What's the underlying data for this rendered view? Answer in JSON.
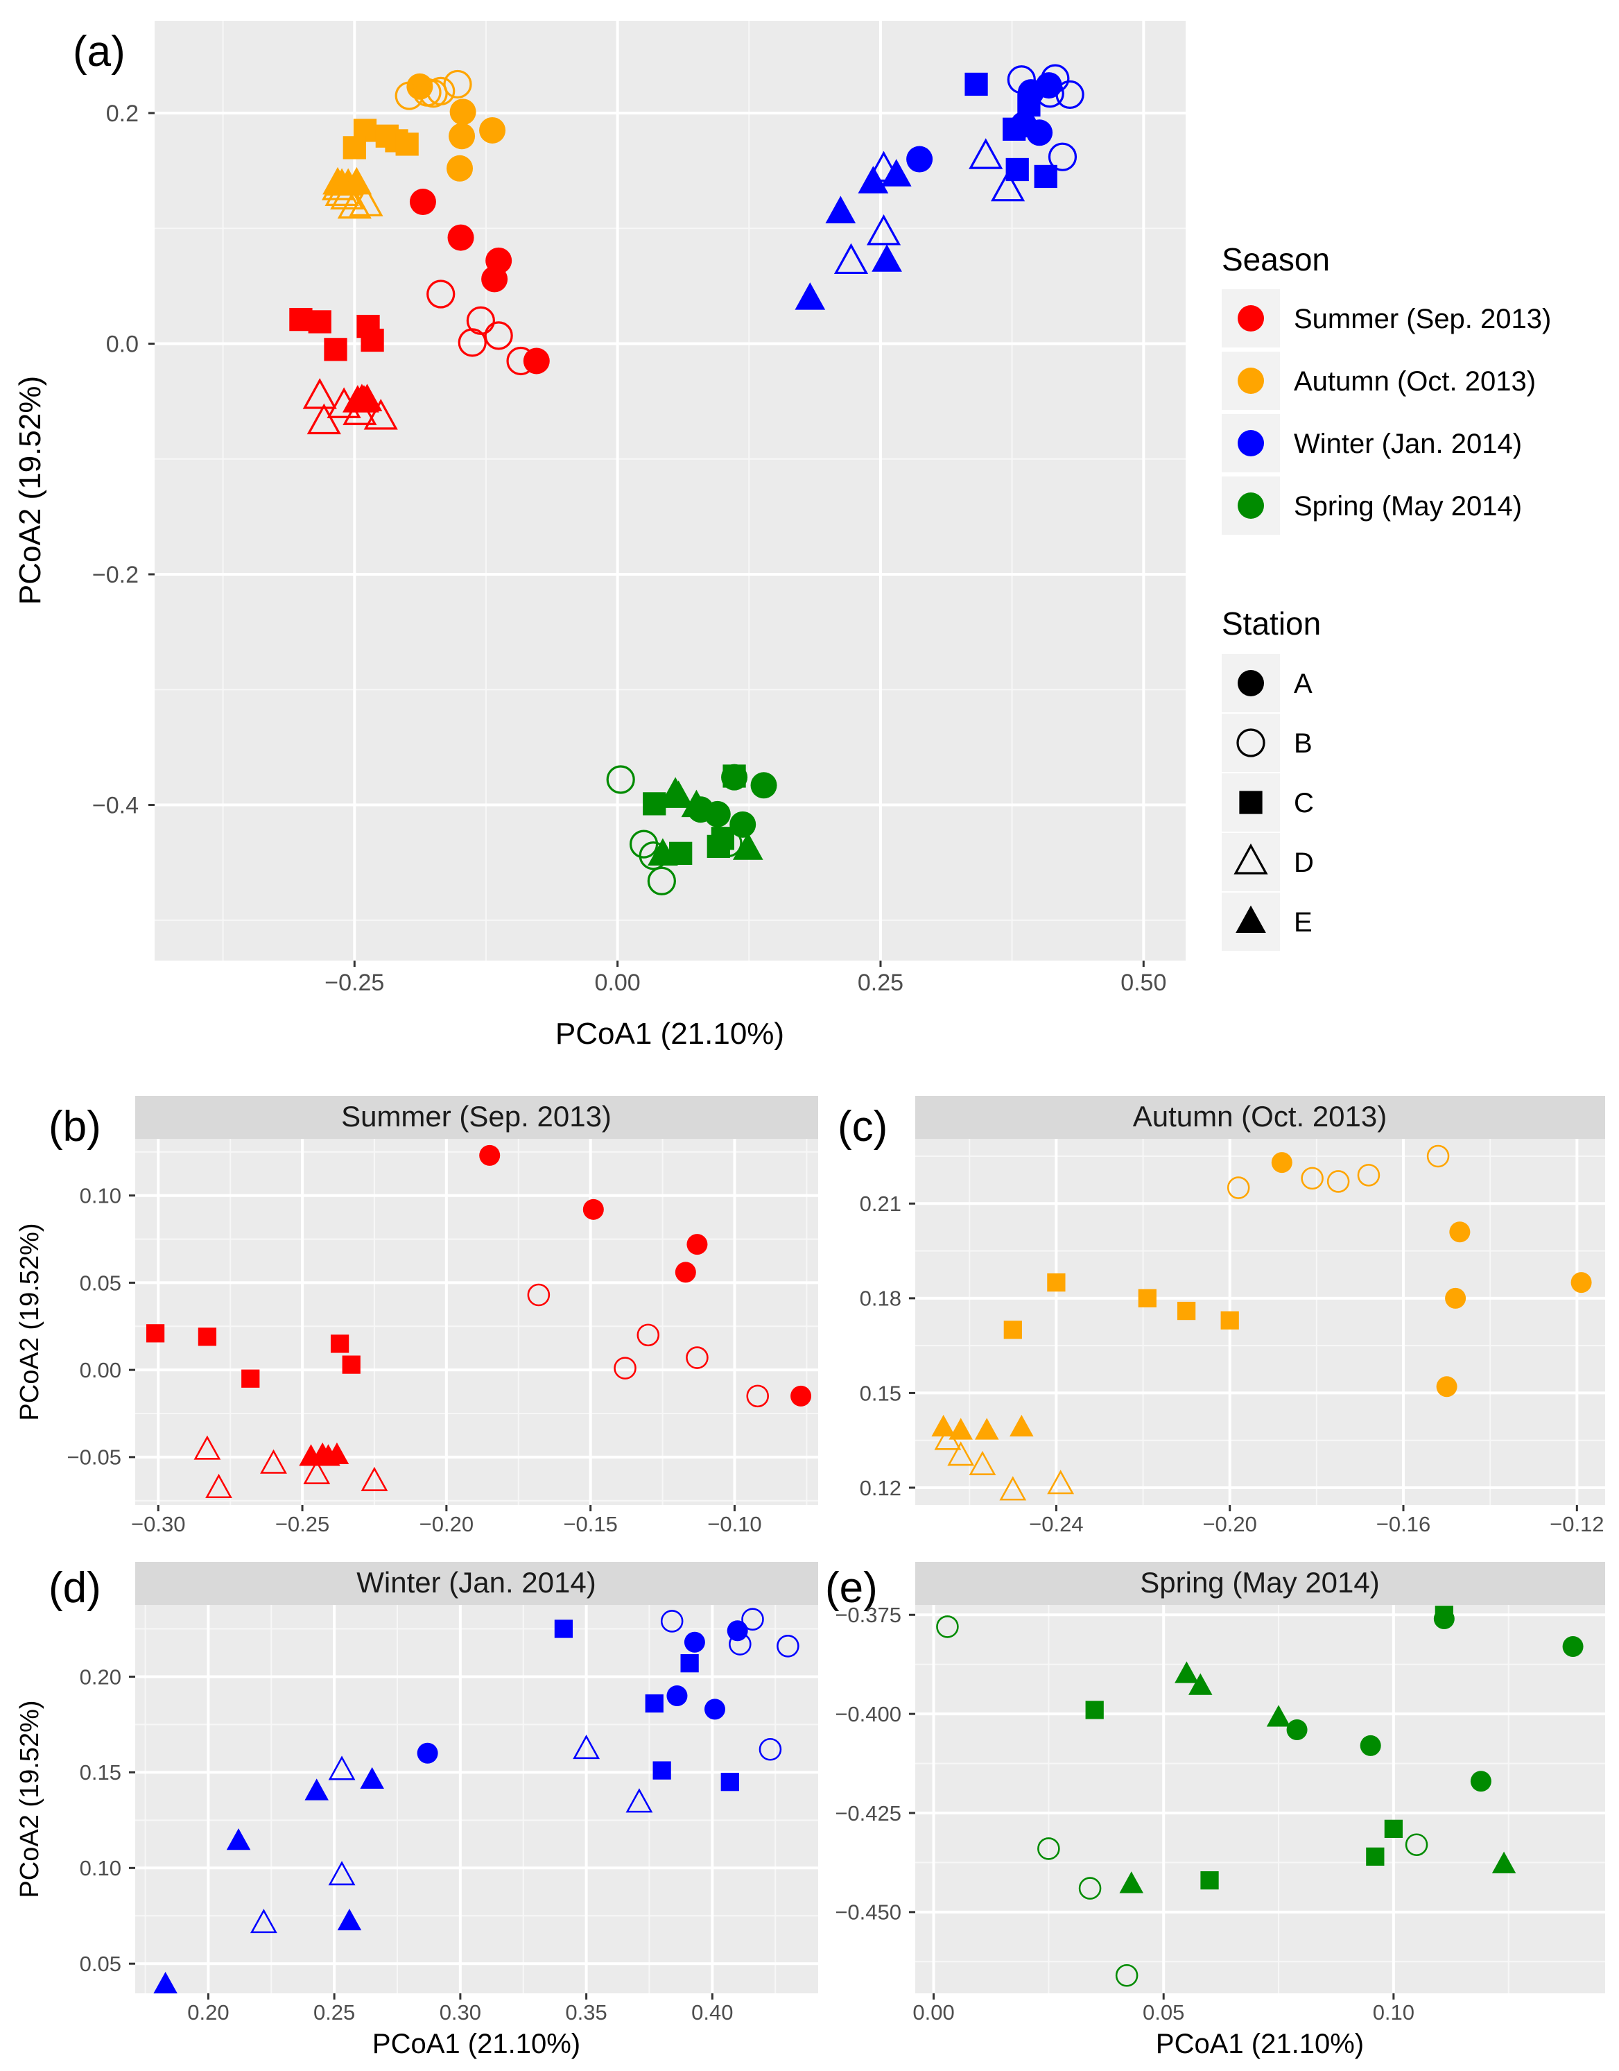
{
  "colors": {
    "Summer": "#ff0000",
    "Autumn": "#ffa500",
    "Winter": "#0000ff",
    "Spring": "#008b00"
  },
  "legend": {
    "season_title": "Season",
    "seasons": [
      {
        "key": "Summer",
        "label": "Summer (Sep. 2013)"
      },
      {
        "key": "Autumn",
        "label": "Autumn (Oct. 2013)"
      },
      {
        "key": "Winter",
        "label": "Winter (Jan. 2014)"
      },
      {
        "key": "Spring",
        "label": "Spring (May 2014)"
      }
    ],
    "station_title": "Station",
    "stations": [
      {
        "key": "A",
        "label": "A",
        "shape": "circle-filled"
      },
      {
        "key": "B",
        "label": "B",
        "shape": "circle-open"
      },
      {
        "key": "C",
        "label": "C",
        "shape": "square-filled"
      },
      {
        "key": "D",
        "label": "D",
        "shape": "triangle-open"
      },
      {
        "key": "E",
        "label": "E",
        "shape": "triangle-filled"
      }
    ]
  },
  "chart_data": [
    {
      "id": "a",
      "letter": "(a)",
      "type": "scatter",
      "title": "",
      "xlabel": "PCoA1 (21.10%)",
      "ylabel": "PCoA2 (19.52%)",
      "xlim": [
        -0.44,
        0.54
      ],
      "ylim": [
        -0.535,
        0.28
      ],
      "xticks": [
        -0.25,
        0.0,
        0.25,
        0.5
      ],
      "xticklabels": [
        "−0.25",
        "0.00",
        "0.25",
        "0.50"
      ],
      "yticks": [
        0.2,
        0.0,
        -0.2,
        -0.4
      ],
      "yticklabels": [
        "0.2",
        "0.0",
        "−0.2",
        "−0.4"
      ],
      "points": [
        {
          "season": "Summer",
          "station": "A",
          "x": -0.185,
          "y": 0.123
        },
        {
          "season": "Summer",
          "station": "A",
          "x": -0.149,
          "y": 0.092
        },
        {
          "season": "Summer",
          "station": "A",
          "x": -0.113,
          "y": 0.072
        },
        {
          "season": "Summer",
          "station": "A",
          "x": -0.117,
          "y": 0.056
        },
        {
          "season": "Summer",
          "station": "A",
          "x": -0.077,
          "y": -0.015
        },
        {
          "season": "Summer",
          "station": "B",
          "x": -0.168,
          "y": 0.043
        },
        {
          "season": "Summer",
          "station": "B",
          "x": -0.13,
          "y": 0.02
        },
        {
          "season": "Summer",
          "station": "B",
          "x": -0.113,
          "y": 0.007
        },
        {
          "season": "Summer",
          "station": "B",
          "x": -0.138,
          "y": 0.001
        },
        {
          "season": "Summer",
          "station": "B",
          "x": -0.092,
          "y": -0.015
        },
        {
          "season": "Summer",
          "station": "C",
          "x": -0.301,
          "y": 0.021
        },
        {
          "season": "Summer",
          "station": "C",
          "x": -0.283,
          "y": 0.019
        },
        {
          "season": "Summer",
          "station": "C",
          "x": -0.268,
          "y": -0.005
        },
        {
          "season": "Summer",
          "station": "C",
          "x": -0.237,
          "y": 0.015
        },
        {
          "season": "Summer",
          "station": "C",
          "x": -0.233,
          "y": 0.003
        },
        {
          "season": "Summer",
          "station": "D",
          "x": -0.283,
          "y": -0.046
        },
        {
          "season": "Summer",
          "station": "D",
          "x": -0.279,
          "y": -0.068
        },
        {
          "season": "Summer",
          "station": "D",
          "x": -0.26,
          "y": -0.054
        },
        {
          "season": "Summer",
          "station": "D",
          "x": -0.245,
          "y": -0.06
        },
        {
          "season": "Summer",
          "station": "D",
          "x": -0.225,
          "y": -0.064
        },
        {
          "season": "Summer",
          "station": "E",
          "x": -0.247,
          "y": -0.05
        },
        {
          "season": "Summer",
          "station": "E",
          "x": -0.243,
          "y": -0.049
        },
        {
          "season": "Summer",
          "station": "E",
          "x": -0.241,
          "y": -0.05
        },
        {
          "season": "Summer",
          "station": "E",
          "x": -0.238,
          "y": -0.049
        },
        {
          "season": "Autumn",
          "station": "A",
          "x": -0.188,
          "y": 0.223
        },
        {
          "season": "Autumn",
          "station": "A",
          "x": -0.147,
          "y": 0.201
        },
        {
          "season": "Autumn",
          "station": "A",
          "x": -0.148,
          "y": 0.18
        },
        {
          "season": "Autumn",
          "station": "A",
          "x": -0.119,
          "y": 0.185
        },
        {
          "season": "Autumn",
          "station": "A",
          "x": -0.15,
          "y": 0.152
        },
        {
          "season": "Autumn",
          "station": "B",
          "x": -0.198,
          "y": 0.215
        },
        {
          "season": "Autumn",
          "station": "B",
          "x": -0.181,
          "y": 0.218
        },
        {
          "season": "Autumn",
          "station": "B",
          "x": -0.175,
          "y": 0.217
        },
        {
          "season": "Autumn",
          "station": "B",
          "x": -0.168,
          "y": 0.219
        },
        {
          "season": "Autumn",
          "station": "B",
          "x": -0.152,
          "y": 0.225
        },
        {
          "season": "Autumn",
          "station": "C",
          "x": -0.24,
          "y": 0.185
        },
        {
          "season": "Autumn",
          "station": "C",
          "x": -0.219,
          "y": 0.18
        },
        {
          "season": "Autumn",
          "station": "C",
          "x": -0.21,
          "y": 0.176
        },
        {
          "season": "Autumn",
          "station": "C",
          "x": -0.2,
          "y": 0.173
        },
        {
          "season": "Autumn",
          "station": "C",
          "x": -0.25,
          "y": 0.17
        },
        {
          "season": "Autumn",
          "station": "D",
          "x": -0.265,
          "y": 0.135
        },
        {
          "season": "Autumn",
          "station": "D",
          "x": -0.262,
          "y": 0.13
        },
        {
          "season": "Autumn",
          "station": "D",
          "x": -0.257,
          "y": 0.127
        },
        {
          "season": "Autumn",
          "station": "D",
          "x": -0.25,
          "y": 0.119
        },
        {
          "season": "Autumn",
          "station": "D",
          "x": -0.239,
          "y": 0.121
        },
        {
          "season": "Autumn",
          "station": "E",
          "x": -0.266,
          "y": 0.139
        },
        {
          "season": "Autumn",
          "station": "E",
          "x": -0.262,
          "y": 0.138
        },
        {
          "season": "Autumn",
          "station": "E",
          "x": -0.256,
          "y": 0.138
        },
        {
          "season": "Autumn",
          "station": "E",
          "x": -0.248,
          "y": 0.139
        },
        {
          "season": "Winter",
          "station": "A",
          "x": 0.287,
          "y": 0.16
        },
        {
          "season": "Winter",
          "station": "A",
          "x": 0.386,
          "y": 0.19
        },
        {
          "season": "Winter",
          "station": "A",
          "x": 0.393,
          "y": 0.218
        },
        {
          "season": "Winter",
          "station": "A",
          "x": 0.401,
          "y": 0.183
        },
        {
          "season": "Winter",
          "station": "A",
          "x": 0.41,
          "y": 0.224
        },
        {
          "season": "Winter",
          "station": "B",
          "x": 0.384,
          "y": 0.229
        },
        {
          "season": "Winter",
          "station": "B",
          "x": 0.411,
          "y": 0.217
        },
        {
          "season": "Winter",
          "station": "B",
          "x": 0.416,
          "y": 0.23
        },
        {
          "season": "Winter",
          "station": "B",
          "x": 0.43,
          "y": 0.216
        },
        {
          "season": "Winter",
          "station": "B",
          "x": 0.423,
          "y": 0.162
        },
        {
          "season": "Winter",
          "station": "C",
          "x": 0.341,
          "y": 0.225
        },
        {
          "season": "Winter",
          "station": "C",
          "x": 0.377,
          "y": 0.186
        },
        {
          "season": "Winter",
          "station": "C",
          "x": 0.38,
          "y": 0.151
        },
        {
          "season": "Winter",
          "station": "C",
          "x": 0.391,
          "y": 0.207
        },
        {
          "season": "Winter",
          "station": "C",
          "x": 0.407,
          "y": 0.145
        },
        {
          "season": "Winter",
          "station": "D",
          "x": 0.222,
          "y": 0.071
        },
        {
          "season": "Winter",
          "station": "D",
          "x": 0.253,
          "y": 0.151
        },
        {
          "season": "Winter",
          "station": "D",
          "x": 0.253,
          "y": 0.096
        },
        {
          "season": "Winter",
          "station": "D",
          "x": 0.35,
          "y": 0.162
        },
        {
          "season": "Winter",
          "station": "D",
          "x": 0.371,
          "y": 0.134
        },
        {
          "season": "Winter",
          "station": "E",
          "x": 0.183,
          "y": 0.039
        },
        {
          "season": "Winter",
          "station": "E",
          "x": 0.212,
          "y": 0.114
        },
        {
          "season": "Winter",
          "station": "E",
          "x": 0.243,
          "y": 0.14
        },
        {
          "season": "Winter",
          "station": "E",
          "x": 0.256,
          "y": 0.072
        },
        {
          "season": "Winter",
          "station": "E",
          "x": 0.265,
          "y": 0.146
        },
        {
          "season": "Spring",
          "station": "A",
          "x": 0.079,
          "y": -0.404
        },
        {
          "season": "Spring",
          "station": "A",
          "x": 0.095,
          "y": -0.408
        },
        {
          "season": "Spring",
          "station": "A",
          "x": 0.111,
          "y": -0.376
        },
        {
          "season": "Spring",
          "station": "A",
          "x": 0.119,
          "y": -0.417
        },
        {
          "season": "Spring",
          "station": "A",
          "x": 0.139,
          "y": -0.383
        },
        {
          "season": "Spring",
          "station": "B",
          "x": 0.003,
          "y": -0.378
        },
        {
          "season": "Spring",
          "station": "B",
          "x": 0.025,
          "y": -0.434
        },
        {
          "season": "Spring",
          "station": "B",
          "x": 0.034,
          "y": -0.444
        },
        {
          "season": "Spring",
          "station": "B",
          "x": 0.042,
          "y": -0.466
        },
        {
          "season": "Spring",
          "station": "B",
          "x": 0.105,
          "y": -0.433
        },
        {
          "season": "Spring",
          "station": "C",
          "x": 0.035,
          "y": -0.399
        },
        {
          "season": "Spring",
          "station": "C",
          "x": 0.06,
          "y": -0.442
        },
        {
          "season": "Spring",
          "station": "C",
          "x": 0.096,
          "y": -0.436
        },
        {
          "season": "Spring",
          "station": "C",
          "x": 0.1,
          "y": -0.429
        },
        {
          "season": "Spring",
          "station": "C",
          "x": 0.111,
          "y": -0.375
        },
        {
          "season": "Spring",
          "station": "E",
          "x": 0.043,
          "y": -0.443
        },
        {
          "season": "Spring",
          "station": "E",
          "x": 0.055,
          "y": -0.39
        },
        {
          "season": "Spring",
          "station": "E",
          "x": 0.058,
          "y": -0.393
        },
        {
          "season": "Spring",
          "station": "E",
          "x": 0.075,
          "y": -0.401
        },
        {
          "season": "Spring",
          "station": "E",
          "x": 0.124,
          "y": -0.438
        }
      ]
    },
    {
      "id": "b",
      "letter": "(b)",
      "type": "scatter",
      "title": "Summer (Sep. 2013)",
      "season": "Summer",
      "xlabel": "",
      "ylabel": "PCoA2 (19.52%)",
      "xlim": [
        -0.308,
        -0.071
      ],
      "ylim": [
        -0.0775,
        0.1325
      ],
      "xticks": [
        -0.3,
        -0.25,
        -0.2,
        -0.15,
        -0.1
      ],
      "xticklabels": [
        "−0.30",
        "−0.25",
        "−0.20",
        "−0.15",
        "−0.10"
      ],
      "yticks": [
        0.1,
        0.05,
        0.0,
        -0.05
      ],
      "yticklabels": [
        "0.10",
        "0.05",
        "0.00",
        "−0.05"
      ]
    },
    {
      "id": "c",
      "letter": "(c)",
      "type": "scatter",
      "title": "Autumn (Oct. 2013)",
      "season": "Autumn",
      "xlabel": "",
      "ylabel": "",
      "xlim": [
        -0.2725,
        -0.1135
      ],
      "ylim": [
        0.1145,
        0.2305
      ],
      "xticks": [
        -0.24,
        -0.2,
        -0.16,
        -0.12
      ],
      "xticklabels": [
        "−0.24",
        "−0.20",
        "−0.16",
        "−0.12"
      ],
      "yticks": [
        0.21,
        0.18,
        0.15,
        0.12
      ],
      "yticklabels": [
        "0.21",
        "0.18",
        "0.15",
        "0.12"
      ]
    },
    {
      "id": "d",
      "letter": "(d)",
      "type": "scatter",
      "title": "Winter (Jan. 2014)",
      "season": "Winter",
      "xlabel": "PCoA1 (21.10%)",
      "ylabel": "PCoA2 (19.52%)",
      "xlim": [
        0.171,
        0.442
      ],
      "ylim": [
        0.0345,
        0.2375
      ],
      "xticks": [
        0.2,
        0.25,
        0.3,
        0.35,
        0.4
      ],
      "xticklabels": [
        "0.20",
        "0.25",
        "0.30",
        "0.35",
        "0.40"
      ],
      "yticks": [
        0.2,
        0.15,
        0.1,
        0.05
      ],
      "yticklabels": [
        "0.20",
        "0.15",
        "0.10",
        "0.05"
      ]
    },
    {
      "id": "e",
      "letter": "(e)",
      "type": "scatter",
      "title": "Spring (May 2014)",
      "season": "Spring",
      "xlabel": "PCoA1 (21.10%)",
      "ylabel": "",
      "xlim": [
        -0.004,
        0.146
      ],
      "ylim": [
        -0.4705,
        -0.3725
      ],
      "xticks": [
        0.0,
        0.05,
        0.1
      ],
      "xticklabels": [
        "0.00",
        "0.05",
        "0.10"
      ],
      "yticks": [
        -0.375,
        -0.4,
        -0.425,
        -0.45
      ],
      "yticklabels": [
        "−0.375",
        "−0.400",
        "−0.425",
        "−0.450"
      ]
    }
  ]
}
